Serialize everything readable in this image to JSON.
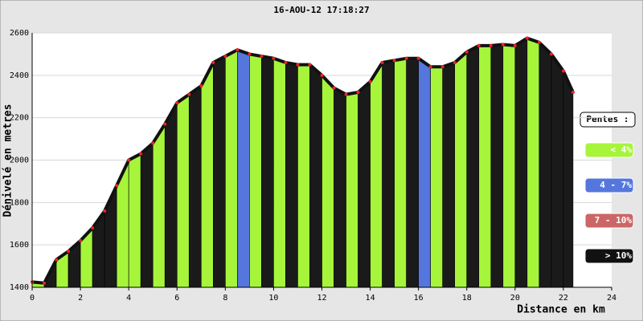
{
  "chart_data": {
    "type": "area",
    "title": "16-AOU-12 17:18:27",
    "x_label": "Distance en km",
    "y_label": "Dénivelé en metres",
    "xlim": [
      0,
      24
    ],
    "ylim": [
      1400,
      2600
    ],
    "xticks": [
      0,
      2,
      4,
      6,
      8,
      10,
      12,
      14,
      16,
      18,
      20,
      22,
      24
    ],
    "yticks": [
      1400,
      1600,
      1800,
      2000,
      2200,
      2400,
      2600
    ],
    "grid": true,
    "line_color": "#111111",
    "point_color": "#ee2222",
    "x": [
      0,
      0.5,
      1,
      1.5,
      2,
      2.5,
      3,
      3.5,
      4,
      4.5,
      5,
      5.5,
      6,
      6.5,
      7,
      7.5,
      8,
      8.5,
      9,
      9.5,
      10,
      10.5,
      11,
      11.5,
      12,
      12.5,
      13,
      13.5,
      14,
      14.5,
      15,
      15.5,
      16,
      16.5,
      17,
      17.5,
      18,
      18.5,
      19,
      19.5,
      20,
      20.5,
      21,
      21.5,
      22,
      22.4
    ],
    "values": [
      1425,
      1420,
      1530,
      1570,
      1620,
      1680,
      1760,
      1880,
      2000,
      2030,
      2080,
      2170,
      2270,
      2310,
      2350,
      2460,
      2490,
      2520,
      2500,
      2490,
      2480,
      2460,
      2450,
      2450,
      2400,
      2340,
      2310,
      2320,
      2370,
      2460,
      2470,
      2480,
      2480,
      2440,
      2440,
      2460,
      2510,
      2540,
      2540,
      2545,
      2540,
      2575,
      2555,
      2500,
      2420,
      2320
    ],
    "segment_colors": [
      "#a6f53a",
      "#1a1a1a",
      "#a6f53a",
      "#1a1a1a",
      "#a6f53a",
      "#1a1a1a",
      "#1a1a1a",
      "#a6f53a",
      "#a6f53a",
      "#1a1a1a",
      "#a6f53a",
      "#1a1a1a",
      "#a6f53a",
      "#1a1a1a",
      "#a6f53a",
      "#1a1a1a",
      "#a6f53a",
      "#5577dd",
      "#a6f53a",
      "#1a1a1a",
      "#a6f53a",
      "#1a1a1a",
      "#a6f53a",
      "#1a1a1a",
      "#a6f53a",
      "#1a1a1a",
      "#a6f53a",
      "#1a1a1a",
      "#a6f53a",
      "#1a1a1a",
      "#a6f53a",
      "#1a1a1a",
      "#5577dd",
      "#a6f53a",
      "#1a1a1a",
      "#a6f53a",
      "#1a1a1a",
      "#a6f53a",
      "#1a1a1a",
      "#a6f53a",
      "#1a1a1a",
      "#a6f53a",
      "#1a1a1a",
      "#1a1a1a",
      "#1a1a1a"
    ],
    "legend_title": "Pentes :",
    "legend": [
      {
        "name": "< 4%",
        "color": "#a6f53a",
        "text_color": "#ffffff"
      },
      {
        "name": "4 - 7%",
        "color": "#5577dd",
        "text_color": "#ffffff"
      },
      {
        "name": "7 - 10%",
        "color": "#cc6666",
        "text_color": "#ffffff"
      },
      {
        "name": "> 10%",
        "color": "#111111",
        "text_color": "#ffffff"
      }
    ]
  }
}
